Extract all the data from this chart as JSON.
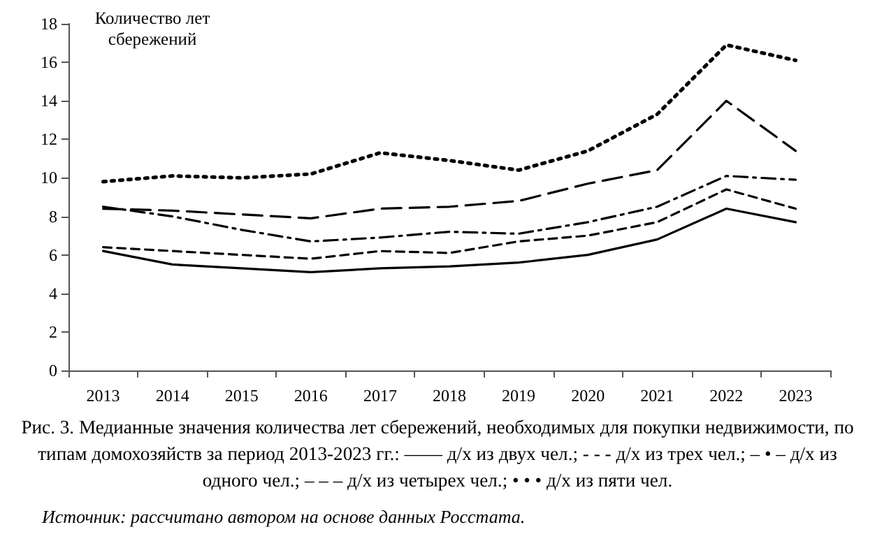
{
  "chart_data": {
    "type": "line",
    "title": "Рис. 3. Медианные значения количества лет сбережений, необходимых для покупки недвижимости, по типам домохозяйств за период 2013-2023 гг.: —— д/х из двух чел.; - - - д/х из трех чел.; – • – д/х из одного чел.; – – – д/х из четырех чел.; • • • д/х из пяти чел.",
    "ylabel": "Количество лет сбережений",
    "annotations": [
      "Источник: рассчитано автором на основе данных Росстата."
    ],
    "categories": [
      "2013",
      "2014",
      "2015",
      "2016",
      "2017",
      "2018",
      "2019",
      "2020",
      "2021",
      "2022",
      "2023"
    ],
    "series": [
      {
        "color": "#000000",
        "line_style": "solid",
        "values": [
          6.2,
          5.5,
          5.3,
          5.1,
          5.3,
          5.4,
          5.6,
          6.0,
          6.8,
          8.4,
          7.7
        ]
      },
      {
        "color": "#000000",
        "line_style": "dashed",
        "values": [
          6.4,
          6.2,
          6.0,
          5.8,
          6.2,
          6.1,
          6.7,
          7.0,
          7.7,
          9.4,
          8.4
        ]
      },
      {
        "color": "#000000",
        "line_style": "dashdot",
        "values": [
          8.5,
          8.0,
          7.3,
          6.7,
          6.9,
          7.2,
          7.1,
          7.7,
          8.5,
          10.1,
          9.9
        ]
      },
      {
        "color": "#000000",
        "line_style": "longdash",
        "values": [
          8.4,
          8.3,
          8.1,
          7.9,
          8.4,
          8.5,
          8.8,
          9.7,
          10.4,
          14.0,
          11.4
        ]
      },
      {
        "color": "#000000",
        "line_style": "dotted",
        "values": [
          9.8,
          10.1,
          10.0,
          10.2,
          11.3,
          10.9,
          10.4,
          11.4,
          13.3,
          16.9,
          16.1
        ]
      }
    ],
    "ylim": [
      0,
      18
    ],
    "yticks": [
      0,
      2,
      4,
      6,
      8,
      10,
      12,
      14,
      16,
      18
    ],
    "grid": false,
    "marker": "none"
  }
}
